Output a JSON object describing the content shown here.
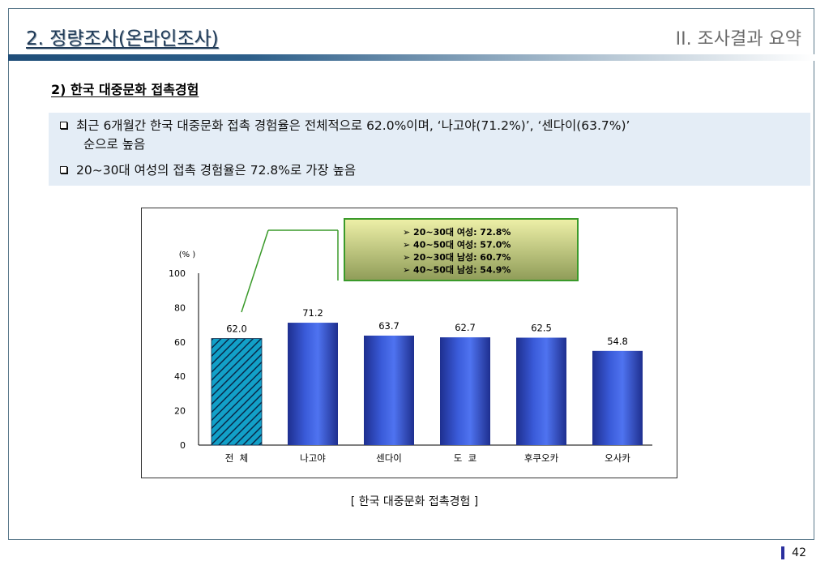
{
  "header": {
    "title": "2. 정량조사(온라인조사)",
    "section": "II. 조사결과 요약"
  },
  "subtitle": "2) 한국 대중문화 접촉경험",
  "bullets": [
    {
      "line1": "최근 6개월간 한국 대중문화 접촉 경험율은 전체적으로 62.0%이며, ‘나고야(71.2%)’, ‘센다이(63.7%)’",
      "line2": "순으로 높음"
    },
    {
      "line1": "20~30대 여성의 접촉 경험율은 72.8%로 가장 높음"
    }
  ],
  "callout": [
    "20~30대 여성: 72.8%",
    "40~50대 여성: 57.0%",
    "20~30대 남성: 60.7%",
    "40~50대 남성: 54.9%"
  ],
  "chart_data": {
    "type": "bar",
    "categories": [
      "전  체",
      "나고야",
      "센다이",
      "도  쿄",
      "후쿠오카",
      "오사카"
    ],
    "values": [
      62.0,
      71.2,
      63.7,
      62.7,
      62.5,
      54.8
    ],
    "value_labels": [
      "62.0",
      "71.2",
      "63.7",
      "62.7",
      "62.5",
      "54.8"
    ],
    "ylabel": "(% )",
    "ylim": [
      0,
      100
    ],
    "yticks": [
      0,
      20,
      40,
      60,
      80,
      100
    ],
    "grid": false,
    "first_bar_style": "hatched",
    "colors": {
      "bar": "#3a5bd9",
      "bar_dark": "#1e2f8f",
      "hatch_bg": "#12a0c8",
      "hatch_line": "#0a2a4a",
      "callout_border": "#3a9a2a"
    }
  },
  "caption": "[ 한국 대중문화 접촉경험 ]",
  "page_number": "42"
}
